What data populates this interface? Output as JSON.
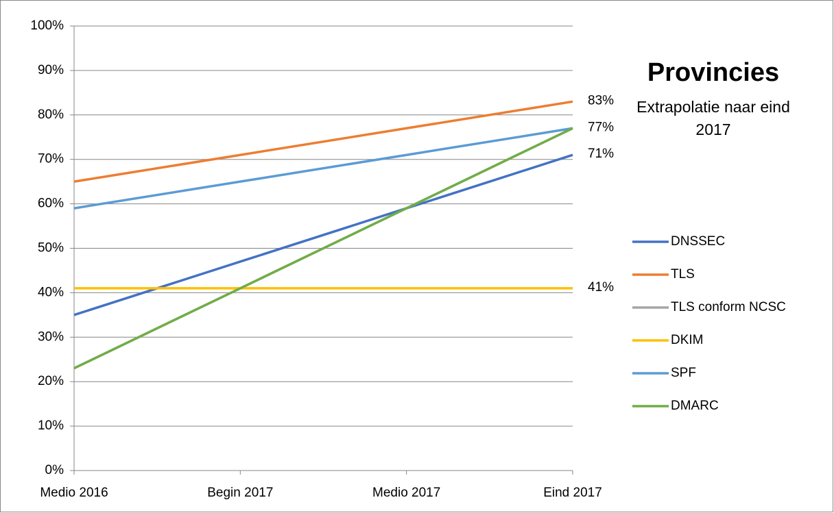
{
  "chart_data": {
    "type": "line",
    "title": "Provincies",
    "subtitle": "Extrapolatie naar eind 2017",
    "categories": [
      "Medio 2016",
      "Begin 2017",
      "Medio 2017",
      "Eind 2017"
    ],
    "series": [
      {
        "name": "DNSSEC",
        "color": "#4472c4",
        "values": [
          35,
          47,
          59,
          71
        ],
        "value_labels": [
          null,
          null,
          null,
          "71%"
        ]
      },
      {
        "name": "TLS",
        "color": "#ed7d31",
        "values": [
          65,
          71,
          77,
          83
        ],
        "value_labels": [
          null,
          null,
          null,
          "83%"
        ]
      },
      {
        "name": "TLS conform NCSC",
        "color": "#a5a5a5",
        "values": [
          23,
          41,
          59,
          77
        ]
      },
      {
        "name": "DKIM",
        "color": "#ffc000",
        "values": [
          41,
          41,
          41,
          41
        ],
        "value_labels": [
          null,
          null,
          null,
          "41%"
        ]
      },
      {
        "name": "SPF",
        "color": "#5b9bd5",
        "values": [
          59,
          65,
          71,
          77
        ],
        "value_labels": [
          null,
          null,
          null,
          "77%"
        ]
      },
      {
        "name": "DMARC",
        "color": "#70ad47",
        "values": [
          23,
          41,
          59,
          77
        ]
      }
    ],
    "ylim": [
      0,
      100
    ],
    "yticks": [
      {
        "value": 0,
        "label": "0%"
      },
      {
        "value": 10,
        "label": "10%"
      },
      {
        "value": 20,
        "label": "20%"
      },
      {
        "value": 30,
        "label": "30%"
      },
      {
        "value": 40,
        "label": "40%"
      },
      {
        "value": 50,
        "label": "50%"
      },
      {
        "value": 60,
        "label": "60%"
      },
      {
        "value": 70,
        "label": "70%"
      },
      {
        "value": 80,
        "label": "80%"
      },
      {
        "value": 90,
        "label": "90%"
      },
      {
        "value": 100,
        "label": "100%"
      }
    ],
    "grid": true,
    "legend": "right"
  }
}
